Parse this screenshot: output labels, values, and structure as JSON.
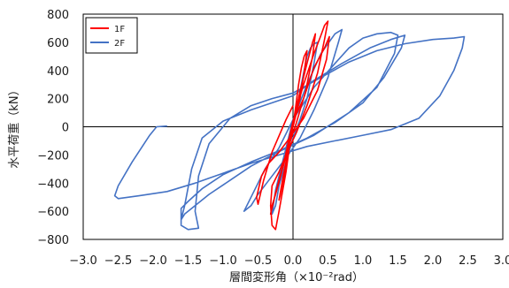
{
  "chart_data": {
    "type": "line",
    "title": "",
    "xlabel": "層間変形角（×10⁻²rad）",
    "ylabel": "水平荷重（kN）",
    "xlim": [
      -3.0,
      3.0
    ],
    "ylim": [
      -800,
      800
    ],
    "x_ticks": [
      -3.0,
      -2.5,
      -2.0,
      -1.5,
      -1.0,
      -0.5,
      0.0,
      0.5,
      1.0,
      1.5,
      2.0,
      2.5,
      3.0
    ],
    "x_tick_labels": [
      "−3.0",
      "−2.5",
      "−2.0",
      "−1.5",
      "−1.0",
      "−0.5",
      "0.0",
      "0.5",
      "1.0",
      "1.5",
      "2.0",
      "2.5",
      "3.0"
    ],
    "y_ticks": [
      -800,
      -600,
      -400,
      -200,
      0,
      200,
      400,
      600,
      800
    ],
    "y_tick_labels": [
      "−800",
      "−600",
      "−400",
      "−200",
      "0",
      "200",
      "400",
      "600",
      "800"
    ],
    "grid": false,
    "legend_position": "top-left",
    "series": [
      {
        "name": "2F",
        "color": "#4472C4",
        "points": [
          [
            0.0,
            0
          ],
          [
            0.05,
            120
          ],
          [
            0.1,
            250
          ],
          [
            0.15,
            380
          ],
          [
            0.2,
            500
          ],
          [
            0.25,
            560
          ],
          [
            0.3,
            590
          ],
          [
            0.35,
            600
          ],
          [
            0.3,
            450
          ],
          [
            0.2,
            200
          ],
          [
            0.1,
            50
          ],
          [
            0.0,
            -80
          ],
          [
            -0.1,
            -250
          ],
          [
            -0.2,
            -420
          ],
          [
            -0.25,
            -560
          ],
          [
            -0.3,
            -620
          ],
          [
            -0.25,
            -450
          ],
          [
            -0.1,
            -150
          ],
          [
            0.0,
            50
          ],
          [
            0.2,
            300
          ],
          [
            0.4,
            520
          ],
          [
            0.6,
            660
          ],
          [
            0.7,
            690
          ],
          [
            0.65,
            600
          ],
          [
            0.5,
            350
          ],
          [
            0.3,
            120
          ],
          [
            0.1,
            -80
          ],
          [
            -0.1,
            -220
          ],
          [
            -0.3,
            -350
          ],
          [
            -0.5,
            -480
          ],
          [
            -0.6,
            -560
          ],
          [
            -0.7,
            -600
          ],
          [
            -0.6,
            -500
          ],
          [
            -0.4,
            -300
          ],
          [
            -0.2,
            -150
          ],
          [
            0.0,
            50
          ],
          [
            0.3,
            280
          ],
          [
            0.6,
            450
          ],
          [
            0.8,
            560
          ],
          [
            1.0,
            630
          ],
          [
            1.2,
            660
          ],
          [
            1.4,
            670
          ],
          [
            1.5,
            650
          ],
          [
            1.45,
            520
          ],
          [
            1.2,
            280
          ],
          [
            0.8,
            100
          ],
          [
            0.3,
            -60
          ],
          [
            0.0,
            -130
          ],
          [
            -0.3,
            -200
          ],
          [
            -0.6,
            -280
          ],
          [
            -0.9,
            -380
          ],
          [
            -1.2,
            -480
          ],
          [
            -1.4,
            -560
          ],
          [
            -1.55,
            -620
          ],
          [
            -1.6,
            -660
          ],
          [
            -1.55,
            -560
          ],
          [
            -1.45,
            -300
          ],
          [
            -1.3,
            -80
          ],
          [
            -1.0,
            40
          ],
          [
            -0.6,
            120
          ],
          [
            -0.3,
            170
          ],
          [
            0.0,
            220
          ],
          [
            0.3,
            330
          ],
          [
            0.7,
            450
          ],
          [
            1.1,
            560
          ],
          [
            1.4,
            620
          ],
          [
            1.6,
            650
          ],
          [
            1.55,
            560
          ],
          [
            1.3,
            350
          ],
          [
            1.0,
            170
          ],
          [
            0.6,
            30
          ],
          [
            0.2,
            -80
          ],
          [
            -0.2,
            -170
          ],
          [
            -0.6,
            -250
          ],
          [
            -1.0,
            -340
          ],
          [
            -1.3,
            -440
          ],
          [
            -1.5,
            -530
          ],
          [
            -1.6,
            -580
          ],
          [
            -1.6,
            -700
          ],
          [
            -1.5,
            -730
          ],
          [
            -1.35,
            -720
          ],
          [
            -1.4,
            -600
          ],
          [
            -1.35,
            -350
          ],
          [
            -1.2,
            -120
          ],
          [
            -0.9,
            60
          ],
          [
            -0.6,
            150
          ],
          [
            -0.3,
            200
          ],
          [
            0.0,
            240
          ],
          [
            0.4,
            350
          ],
          [
            0.8,
            460
          ],
          [
            1.2,
            540
          ],
          [
            1.6,
            590
          ],
          [
            2.0,
            620
          ],
          [
            2.3,
            630
          ],
          [
            2.45,
            640
          ],
          [
            2.42,
            560
          ],
          [
            2.3,
            400
          ],
          [
            2.1,
            220
          ],
          [
            1.8,
            60
          ],
          [
            1.4,
            -20
          ],
          [
            1.0,
            -60
          ],
          [
            0.6,
            -100
          ],
          [
            0.2,
            -140
          ],
          [
            -0.2,
            -200
          ],
          [
            -0.6,
            -260
          ],
          [
            -1.0,
            -330
          ],
          [
            -1.4,
            -400
          ],
          [
            -1.8,
            -460
          ],
          [
            -2.2,
            -490
          ],
          [
            -2.5,
            -510
          ],
          [
            -2.55,
            -490
          ],
          [
            -2.5,
            -420
          ],
          [
            -2.3,
            -250
          ],
          [
            -2.05,
            -60
          ],
          [
            -1.95,
            0
          ],
          [
            -1.8,
            5
          ]
        ]
      },
      {
        "name": "1F",
        "color": "#FF0000",
        "points": [
          [
            0.0,
            0
          ],
          [
            0.04,
            150
          ],
          [
            0.08,
            300
          ],
          [
            0.12,
            420
          ],
          [
            0.16,
            500
          ],
          [
            0.2,
            540
          ],
          [
            0.17,
            420
          ],
          [
            0.1,
            200
          ],
          [
            0.0,
            0
          ],
          [
            -0.08,
            -200
          ],
          [
            -0.14,
            -380
          ],
          [
            -0.18,
            -480
          ],
          [
            -0.2,
            -520
          ],
          [
            -0.15,
            -380
          ],
          [
            -0.05,
            -120
          ],
          [
            0.0,
            20
          ],
          [
            0.1,
            250
          ],
          [
            0.2,
            450
          ],
          [
            0.28,
            600
          ],
          [
            0.32,
            660
          ],
          [
            0.28,
            500
          ],
          [
            0.18,
            250
          ],
          [
            0.05,
            30
          ],
          [
            -0.05,
            -120
          ],
          [
            -0.15,
            -300
          ],
          [
            -0.25,
            -480
          ],
          [
            -0.3,
            -560
          ],
          [
            -0.32,
            -620
          ],
          [
            -0.25,
            -470
          ],
          [
            -0.12,
            -230
          ],
          [
            0.0,
            40
          ],
          [
            0.15,
            300
          ],
          [
            0.3,
            520
          ],
          [
            0.4,
            650
          ],
          [
            0.45,
            720
          ],
          [
            0.5,
            750
          ],
          [
            0.45,
            620
          ],
          [
            0.35,
            380
          ],
          [
            0.2,
            150
          ],
          [
            0.05,
            -40
          ],
          [
            -0.1,
            -200
          ],
          [
            -0.2,
            -320
          ],
          [
            -0.3,
            -420
          ],
          [
            -0.32,
            -560
          ],
          [
            -0.3,
            -700
          ],
          [
            -0.25,
            -730
          ],
          [
            -0.2,
            -600
          ],
          [
            -0.1,
            -320
          ],
          [
            0.0,
            40
          ],
          [
            0.15,
            200
          ],
          [
            0.3,
            420
          ],
          [
            0.45,
            560
          ],
          [
            0.52,
            640
          ],
          [
            0.48,
            480
          ],
          [
            0.35,
            260
          ],
          [
            0.15,
            60
          ],
          [
            -0.05,
            -80
          ],
          [
            -0.2,
            -180
          ],
          [
            -0.35,
            -260
          ],
          [
            -0.45,
            -350
          ],
          [
            -0.52,
            -500
          ],
          [
            -0.5,
            -550
          ],
          [
            -0.42,
            -380
          ],
          [
            -0.3,
            -180
          ],
          [
            -0.1,
            50
          ],
          [
            0.0,
            150
          ]
        ]
      }
    ]
  }
}
